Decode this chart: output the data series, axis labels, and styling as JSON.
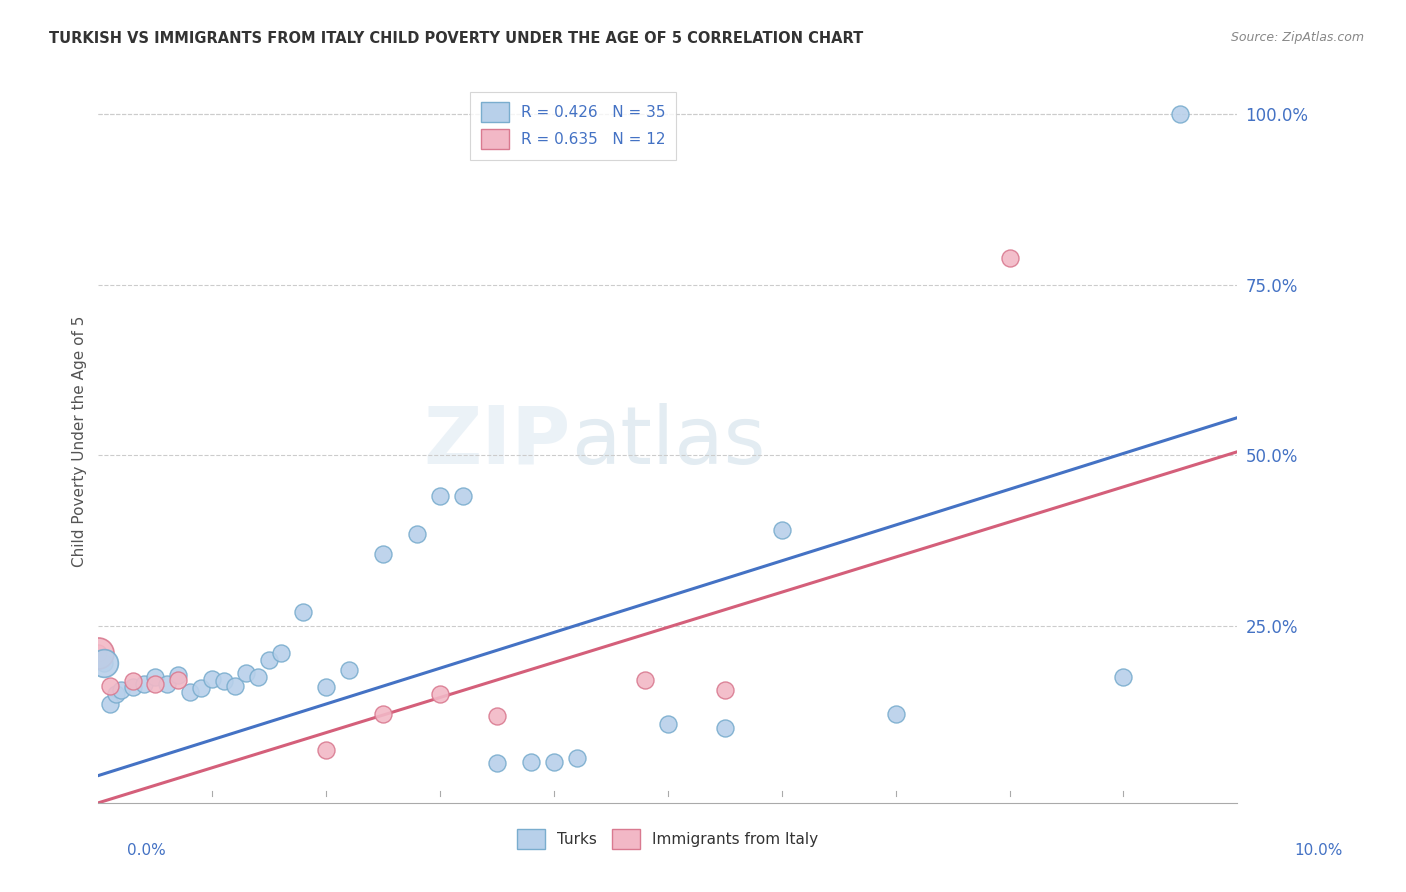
{
  "title": "TURKISH VS IMMIGRANTS FROM ITALY CHILD POVERTY UNDER THE AGE OF 5 CORRELATION CHART",
  "source": "Source: ZipAtlas.com",
  "ylabel": "Child Poverty Under the Age of 5",
  "y_ticks": [
    0.0,
    0.25,
    0.5,
    0.75,
    1.0
  ],
  "y_tick_labels": [
    "",
    "25.0%",
    "50.0%",
    "75.0%",
    "100.0%"
  ],
  "turks_color": "#b8d0ea",
  "turks_edge_color": "#7aadce",
  "italy_color": "#f2b8c6",
  "italy_edge_color": "#d97a90",
  "trend_turks_color": "#4472c4",
  "trend_italy_color": "#d45f7a",
  "background_color": "#ffffff",
  "xlim": [
    0.0,
    0.1
  ],
  "ylim": [
    -0.01,
    1.05
  ],
  "turks_x": [
    0.0005,
    0.001,
    0.0015,
    0.002,
    0.003,
    0.004,
    0.005,
    0.006,
    0.007,
    0.008,
    0.009,
    0.01,
    0.011,
    0.012,
    0.013,
    0.014,
    0.015,
    0.016,
    0.018,
    0.02,
    0.022,
    0.025,
    0.028,
    0.03,
    0.032,
    0.035,
    0.038,
    0.04,
    0.042,
    0.05,
    0.055,
    0.06,
    0.07,
    0.09,
    0.095
  ],
  "turks_y": [
    0.195,
    0.135,
    0.15,
    0.155,
    0.16,
    0.165,
    0.175,
    0.165,
    0.178,
    0.152,
    0.158,
    0.172,
    0.168,
    0.162,
    0.18,
    0.175,
    0.2,
    0.21,
    0.27,
    0.16,
    0.185,
    0.355,
    0.385,
    0.44,
    0.44,
    0.048,
    0.05,
    0.05,
    0.055,
    0.105,
    0.1,
    0.39,
    0.12,
    0.175,
    1.0
  ],
  "turks_sizes": [
    200,
    100,
    100,
    100,
    100,
    100,
    100,
    100,
    100,
    100,
    100,
    100,
    100,
    100,
    100,
    100,
    100,
    100,
    100,
    100,
    100,
    100,
    100,
    100,
    100,
    100,
    100,
    100,
    100,
    100,
    100,
    100,
    100,
    100,
    200
  ],
  "italy_x": [
    0.0,
    0.001,
    0.003,
    0.005,
    0.007,
    0.02,
    0.025,
    0.03,
    0.035,
    0.048,
    0.055,
    0.08
  ],
  "italy_y": [
    0.21,
    0.162,
    0.168,
    0.165,
    0.17,
    0.068,
    0.12,
    0.15,
    0.118,
    0.17,
    0.155,
    0.79
  ],
  "italy_sizes": [
    300,
    100,
    100,
    100,
    100,
    100,
    100,
    100,
    100,
    100,
    100,
    100
  ],
  "trend_turks_x0": 0.0,
  "trend_turks_y0": 0.03,
  "trend_turks_x1": 0.1,
  "trend_turks_y1": 0.555,
  "trend_italy_x0": 0.0,
  "trend_italy_y0": -0.01,
  "trend_italy_x1": 0.1,
  "trend_italy_y1": 0.505
}
